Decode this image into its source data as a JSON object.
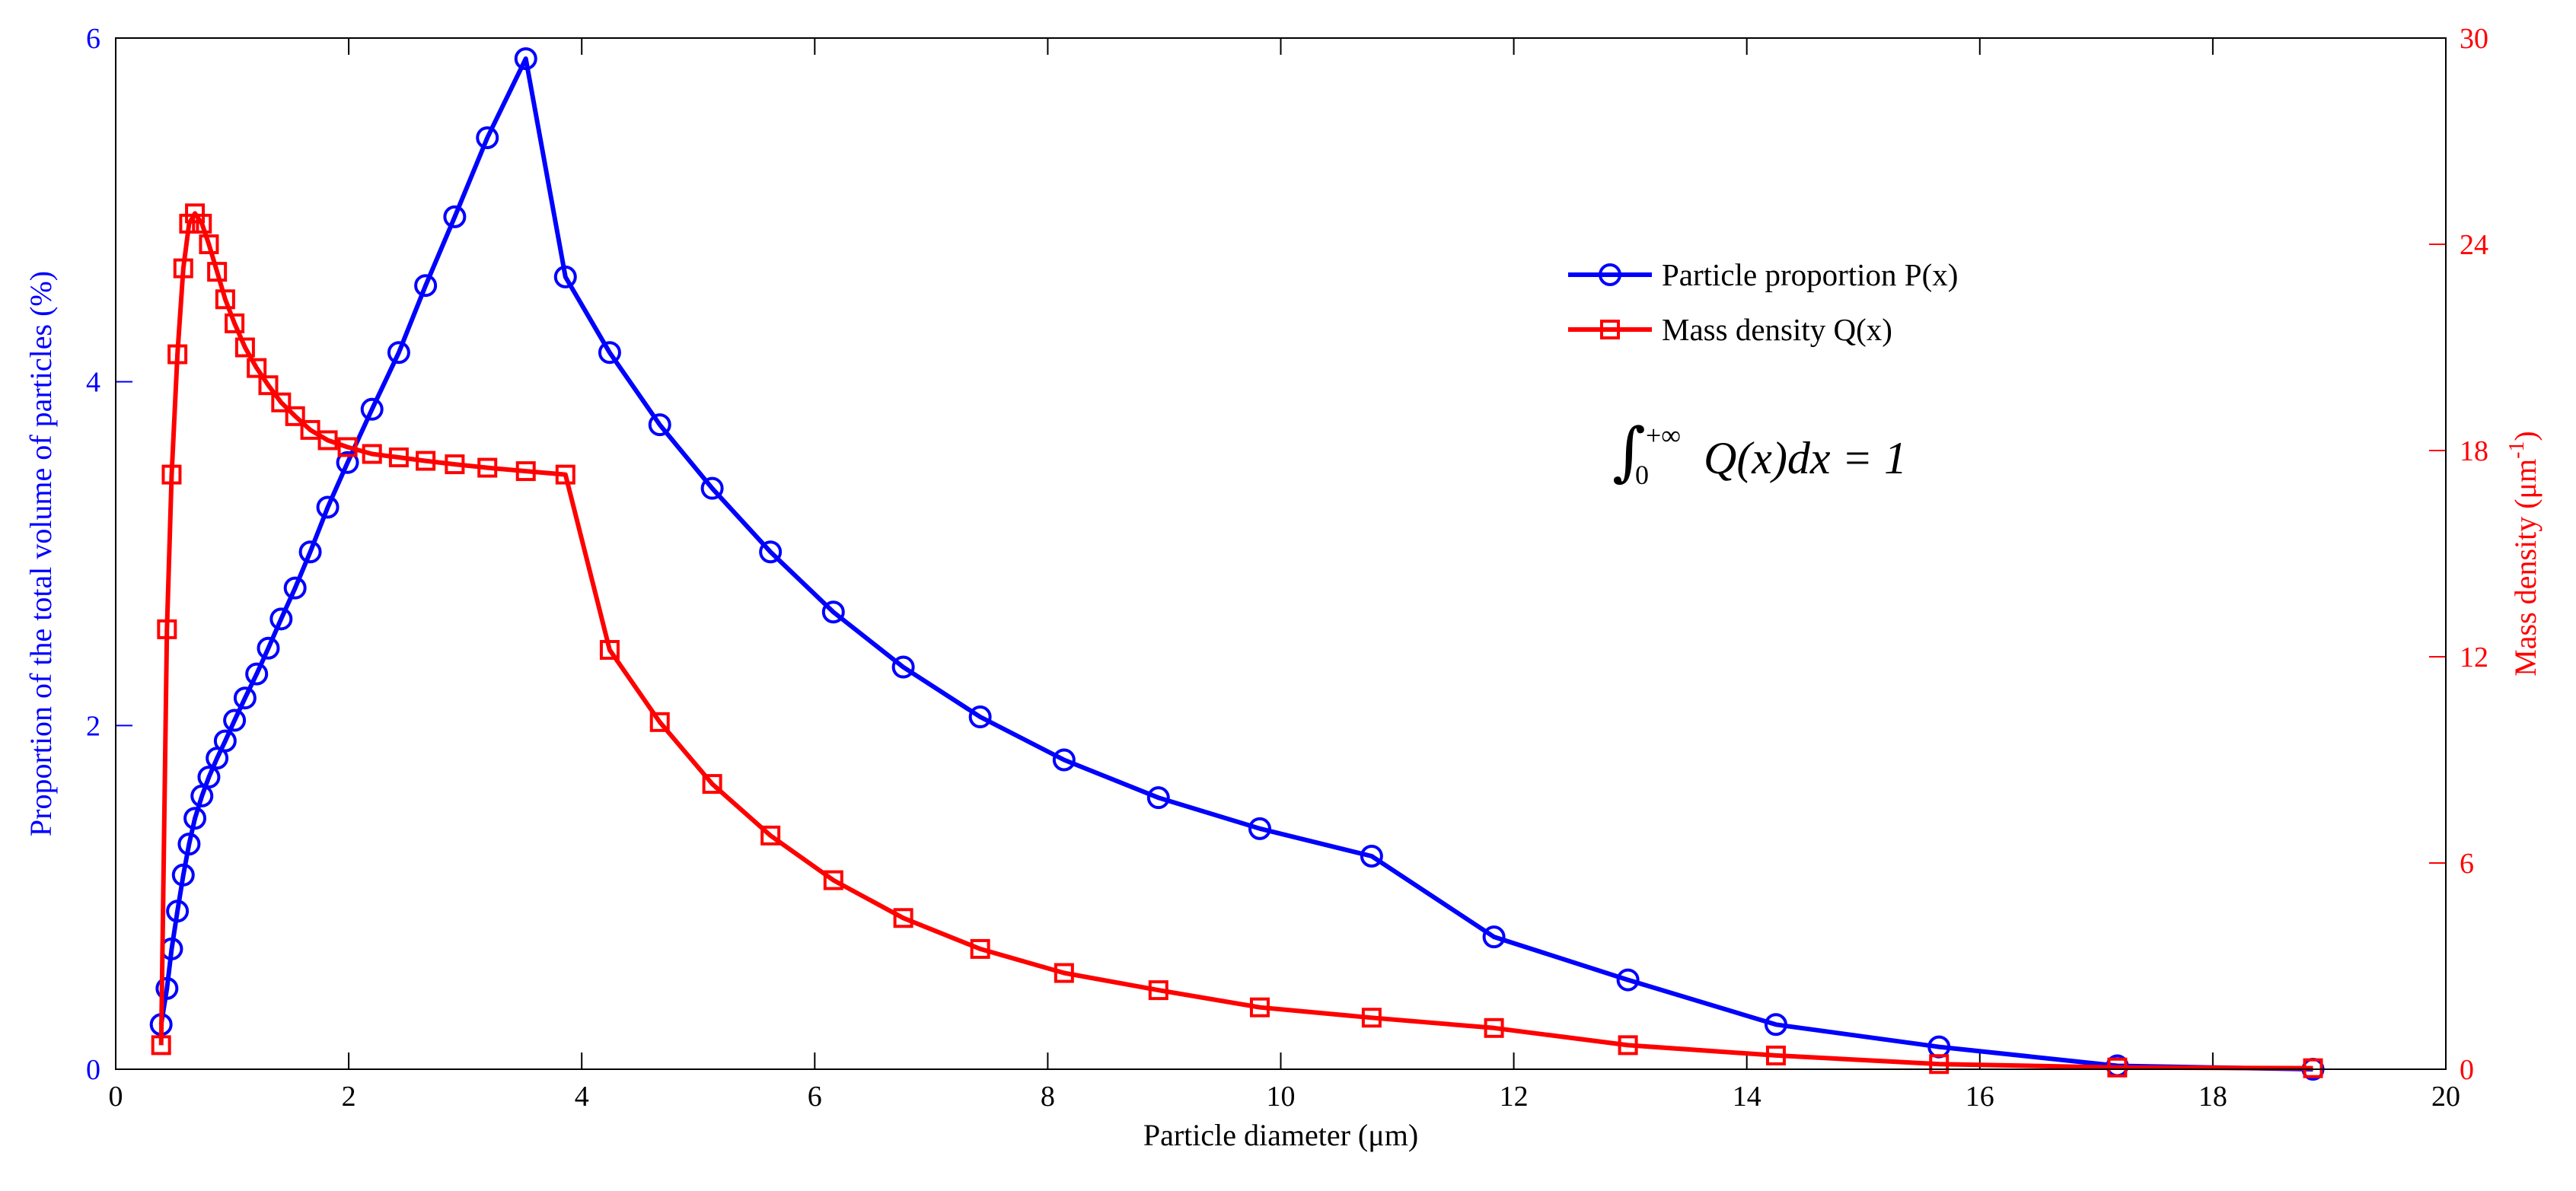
{
  "chart_data": {
    "type": "line",
    "title": "",
    "xlabel": "Particle diameter (μm)",
    "ylabel_left": "Proportion of the total volume of particles (%)",
    "ylabel_right_base": "Mass density (μm",
    "ylabel_right_exp": "-1",
    "ylabel_right_close": ")",
    "xlim": [
      0,
      20
    ],
    "ylim_left": [
      0,
      6
    ],
    "ylim_right": [
      0,
      30
    ],
    "x_ticks": [
      "0",
      "2",
      "4",
      "6",
      "8",
      "10",
      "12",
      "14",
      "16",
      "18",
      "20"
    ],
    "y_left_ticks": [
      "0",
      "2",
      "4",
      "6"
    ],
    "y_right_ticks": [
      "0",
      "6",
      "12",
      "18",
      "24",
      "30"
    ],
    "legend_position": "upper-right",
    "annotation": {
      "integral_lower": "0",
      "integral_upper": "+∞",
      "expression": "Q(x)dx = 1"
    },
    "colors": {
      "series_p": "#0000ff",
      "series_q": "#ff0000",
      "axis": "#000000"
    },
    "series": [
      {
        "name": "Particle proportion P(x)",
        "axis": "left",
        "marker": "circle",
        "x": [
          0.39,
          0.44,
          0.48,
          0.53,
          0.58,
          0.63,
          0.68,
          0.74,
          0.8,
          0.87,
          0.94,
          1.02,
          1.11,
          1.21,
          1.31,
          1.42,
          1.54,
          1.67,
          1.82,
          1.99,
          2.2,
          2.43,
          2.66,
          2.91,
          3.19,
          3.52,
          3.86,
          4.24,
          4.67,
          5.12,
          5.62,
          6.16,
          6.76,
          7.42,
          8.14,
          8.95,
          9.82,
          10.78,
          11.83,
          12.98,
          14.25,
          15.65,
          17.18,
          18.86
        ],
        "values": [
          0.26,
          0.47,
          0.7,
          0.92,
          1.13,
          1.31,
          1.46,
          1.59,
          1.7,
          1.81,
          1.91,
          2.03,
          2.16,
          2.3,
          2.45,
          2.62,
          2.8,
          3.01,
          3.27,
          3.53,
          3.84,
          4.17,
          4.56,
          4.96,
          5.42,
          5.88,
          4.61,
          4.17,
          3.75,
          3.38,
          3.01,
          2.66,
          2.34,
          2.05,
          1.8,
          1.58,
          1.4,
          1.24,
          0.77,
          0.52,
          0.26,
          0.13,
          0.02,
          0.0
        ]
      },
      {
        "name": "Mass density Q(x)",
        "axis": "right",
        "marker": "square",
        "x": [
          0.39,
          0.44,
          0.48,
          0.53,
          0.58,
          0.63,
          0.68,
          0.74,
          0.8,
          0.87,
          0.94,
          1.02,
          1.11,
          1.21,
          1.31,
          1.42,
          1.54,
          1.67,
          1.82,
          1.99,
          2.2,
          2.43,
          2.66,
          2.91,
          3.19,
          3.52,
          3.86,
          4.24,
          4.67,
          5.12,
          5.62,
          6.16,
          6.76,
          7.42,
          8.14,
          8.95,
          9.82,
          10.78,
          11.83,
          12.98,
          14.25,
          15.65,
          17.18,
          18.86
        ],
        "values": [
          0.7,
          12.8,
          17.3,
          20.8,
          23.3,
          24.6,
          24.9,
          24.6,
          24.0,
          23.2,
          22.4,
          21.7,
          21.0,
          20.4,
          19.9,
          19.4,
          19.0,
          18.6,
          18.3,
          18.1,
          17.9,
          17.8,
          17.7,
          17.6,
          17.5,
          17.4,
          17.3,
          12.2,
          10.1,
          8.3,
          6.8,
          5.5,
          4.4,
          3.5,
          2.8,
          2.3,
          1.8,
          1.5,
          1.2,
          0.7,
          0.4,
          0.15,
          0.05,
          0.03
        ]
      }
    ]
  }
}
